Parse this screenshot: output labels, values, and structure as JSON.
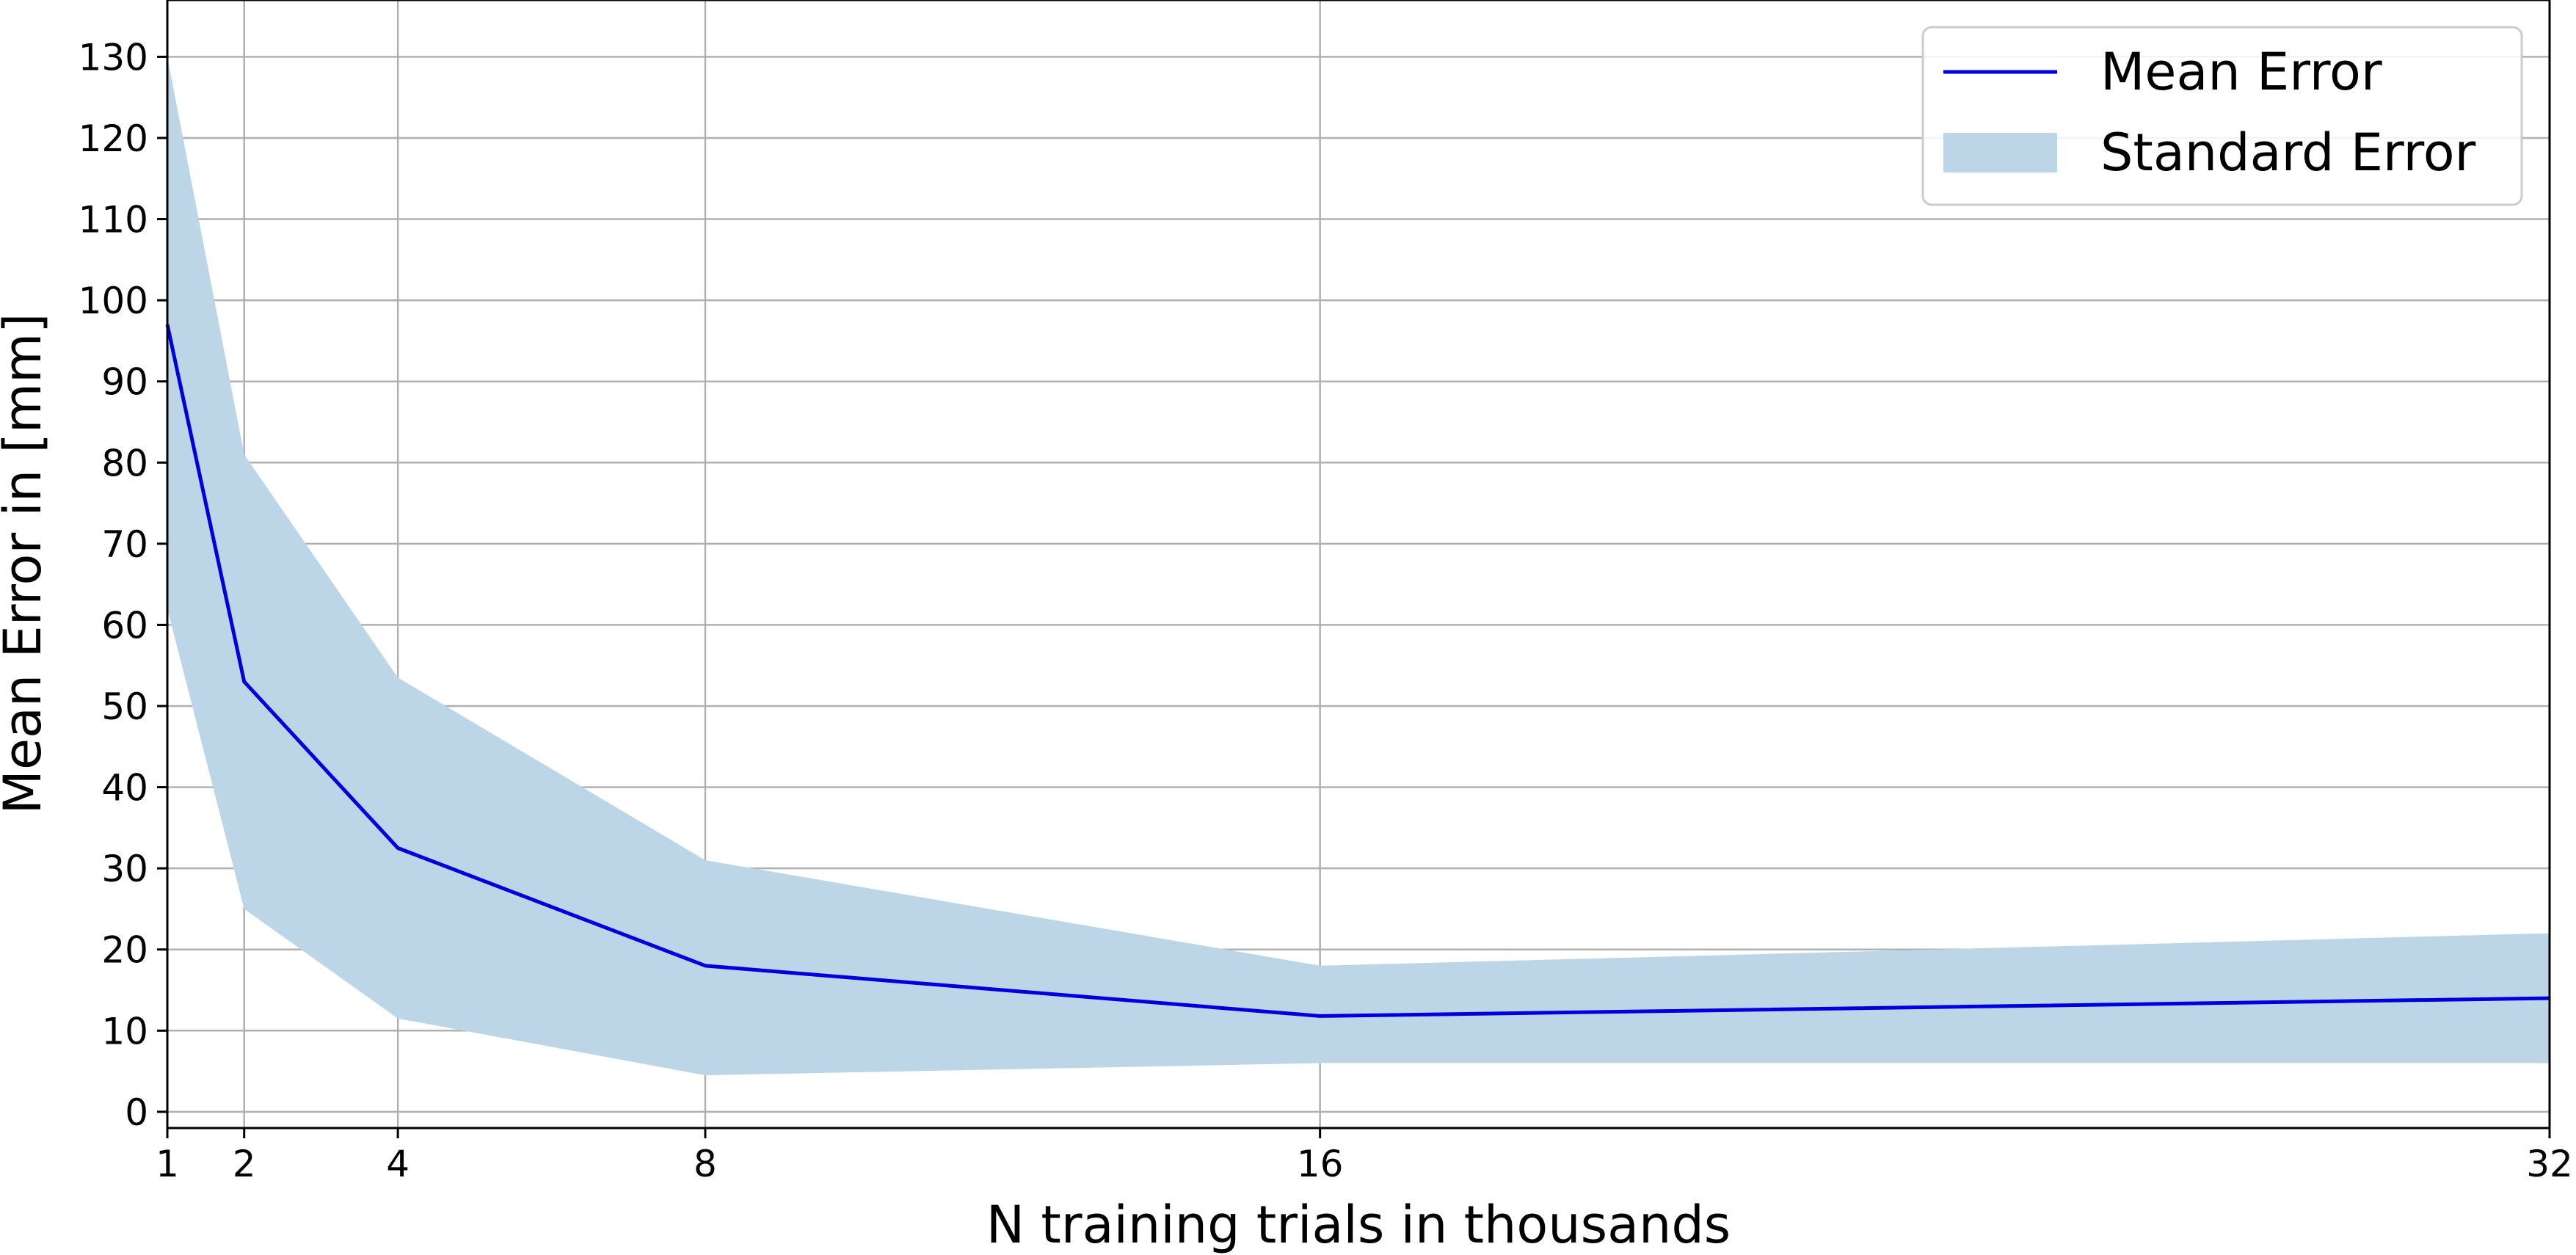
{
  "chart_data": {
    "type": "line",
    "title": "",
    "xlabel": "N training trials in thousands",
    "ylabel": "Mean Error in [mm]",
    "x": [
      1,
      2,
      4,
      8,
      16,
      32
    ],
    "xticks": [
      "1",
      "2",
      "4",
      "8",
      "16",
      "32"
    ],
    "yticks": [
      "0",
      "10",
      "20",
      "30",
      "40",
      "50",
      "60",
      "70",
      "80",
      "90",
      "100",
      "110",
      "120",
      "130"
    ],
    "xlim": [
      1,
      32
    ],
    "ylim": [
      -2,
      137
    ],
    "grid": true,
    "legend_position": "top-right",
    "series": [
      {
        "name": "Mean Error",
        "kind": "line",
        "color": "#0000dd",
        "values": [
          97,
          53,
          32.5,
          18,
          11.8,
          14
        ]
      },
      {
        "name": "Standard Error",
        "kind": "band",
        "color": "#bcd6e8",
        "upper": [
          130,
          81,
          53.5,
          31,
          18,
          22
        ],
        "lower": [
          62,
          25,
          11.5,
          4.5,
          6,
          6
        ]
      }
    ]
  }
}
